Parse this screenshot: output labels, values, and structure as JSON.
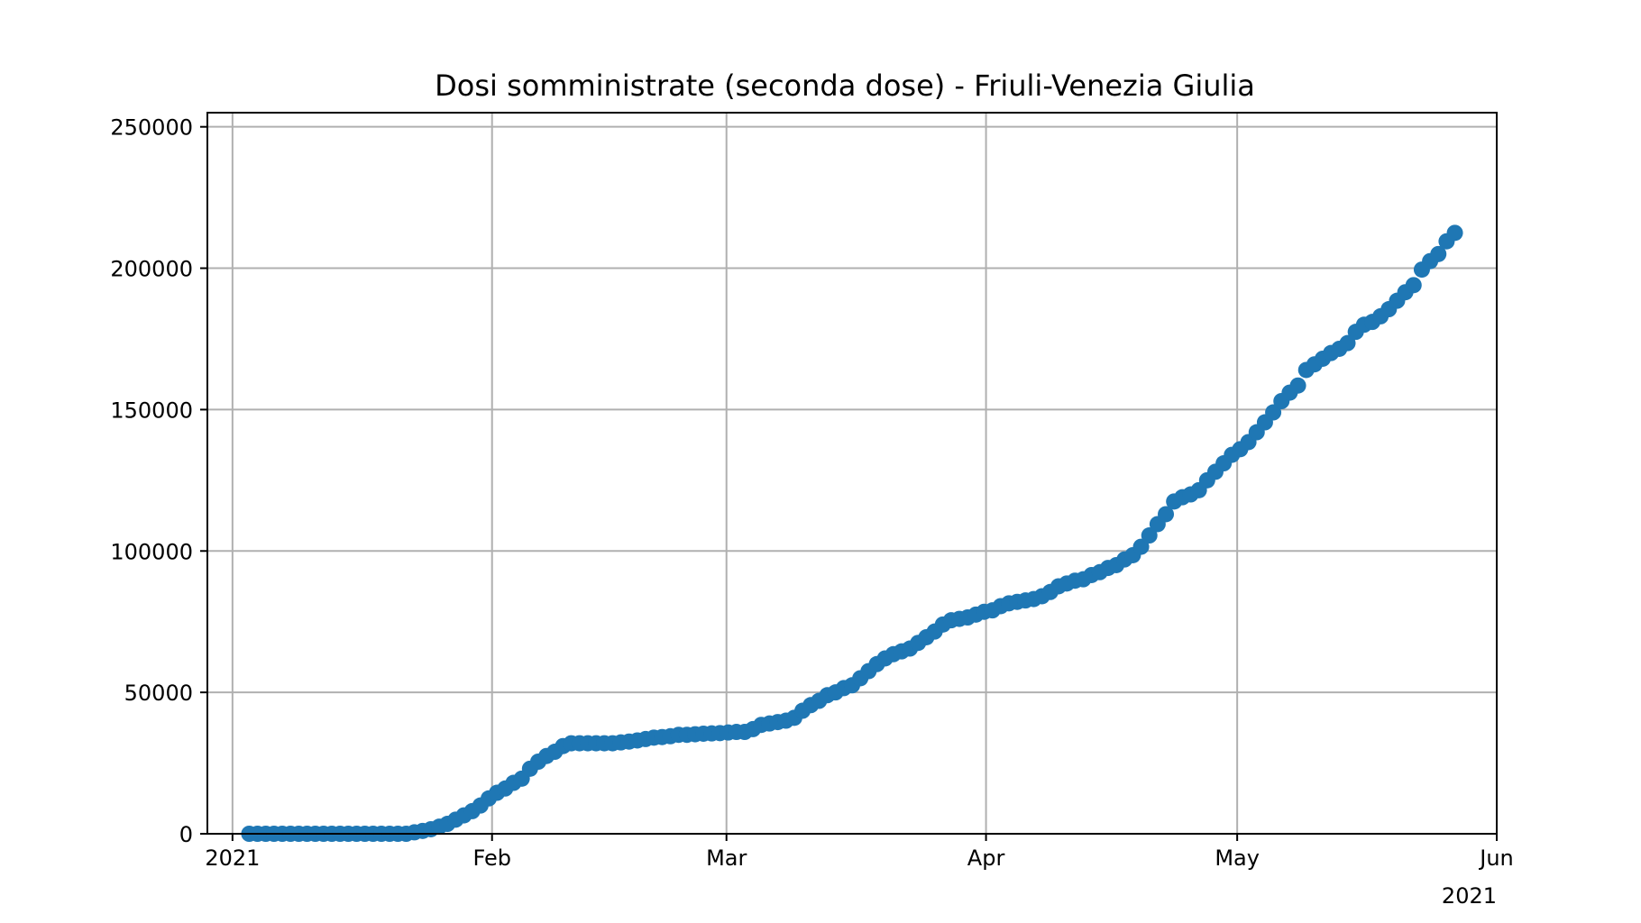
{
  "chart_data": {
    "type": "scatter",
    "title": "Dosi somministrate (seconda dose) - Friuli-Venezia Giulia",
    "xlabel": "",
    "ylabel": "",
    "x_start": "2021-01-03",
    "x_end": "2021-05-27",
    "xlim": [
      "2020-12-29",
      "2021-06-01"
    ],
    "ylim": [
      0,
      255000
    ],
    "grid": true,
    "color": "#1f77b4",
    "x_ticks": [
      {
        "date": "2021-01-01",
        "label": "2021"
      },
      {
        "date": "2021-02-01",
        "label": "Feb"
      },
      {
        "date": "2021-03-01",
        "label": "Mar"
      },
      {
        "date": "2021-04-01",
        "label": "Apr"
      },
      {
        "date": "2021-05-01",
        "label": "May"
      },
      {
        "date": "2021-06-01",
        "label": "Jun"
      }
    ],
    "x_offset_label": "2021",
    "y_ticks": [
      {
        "value": 0,
        "label": "0"
      },
      {
        "value": 50000,
        "label": "50000"
      },
      {
        "value": 100000,
        "label": "100000"
      },
      {
        "value": 150000,
        "label": "150000"
      },
      {
        "value": 200000,
        "label": "200000"
      },
      {
        "value": 250000,
        "label": "250000"
      }
    ],
    "values": [
      0,
      0,
      0,
      0,
      0,
      0,
      0,
      0,
      0,
      0,
      0,
      0,
      0,
      0,
      0,
      0,
      0,
      0,
      0,
      0,
      500,
      1000,
      1600,
      2500,
      3500,
      5000,
      6500,
      8000,
      10000,
      12500,
      14500,
      16000,
      18000,
      19500,
      23000,
      25500,
      27500,
      29000,
      31000,
      32000,
      32000,
      32000,
      32000,
      32000,
      32000,
      32300,
      32600,
      33000,
      33500,
      34000,
      34200,
      34500,
      35000,
      35000,
      35200,
      35400,
      35500,
      35600,
      35800,
      36000,
      36000,
      37000,
      38500,
      39000,
      39500,
      40000,
      41000,
      43500,
      45500,
      47000,
      49000,
      50000,
      51500,
      52500,
      55000,
      57500,
      60000,
      62000,
      63500,
      64500,
      65500,
      67500,
      69500,
      71500,
      74000,
      75500,
      76000,
      76500,
      77500,
      78500,
      79000,
      80500,
      81500,
      82000,
      82500,
      83000,
      84000,
      85500,
      87500,
      88500,
      89500,
      90000,
      91500,
      92500,
      94000,
      95000,
      97000,
      98500,
      101500,
      105500,
      109500,
      113000,
      117500,
      119000,
      120000,
      121500,
      125000,
      128000,
      131000,
      134000,
      136000,
      138500,
      142000,
      145500,
      149000,
      153000,
      156000,
      158500,
      164000,
      166000,
      168000,
      170000,
      171500,
      173500,
      177500,
      180000,
      181000,
      183000,
      185500,
      188500,
      191500,
      194000,
      199500,
      202500,
      205000,
      209500,
      212500
    ]
  }
}
